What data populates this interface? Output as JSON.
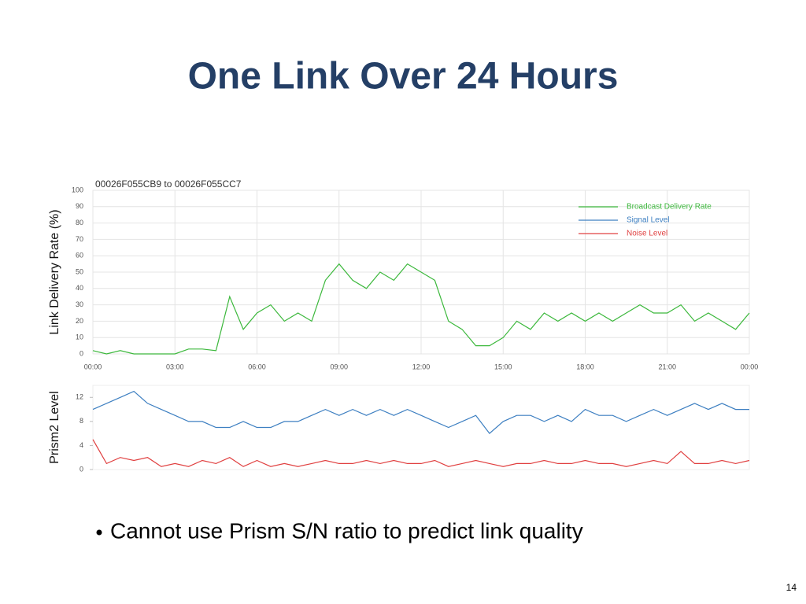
{
  "slide": {
    "title": "One Link Over 24 Hours",
    "bullet": "Cannot use Prism S/N ratio to predict link quality",
    "page_number": "14"
  },
  "chart_data": [
    {
      "type": "line",
      "title": "00026F055CB9 to 00026F055CC7",
      "y_label": "Link Delivery Rate (%)",
      "legend": "upper right",
      "grid": true,
      "x": [
        0,
        0.5,
        1,
        1.5,
        2,
        2.5,
        3,
        3.5,
        4,
        4.5,
        5,
        5.5,
        6,
        6.5,
        7,
        7.5,
        8,
        8.5,
        9,
        9.5,
        10,
        10.5,
        11,
        11.5,
        12,
        12.5,
        13,
        13.5,
        14,
        14.5,
        15,
        15.5,
        16,
        16.5,
        17,
        17.5,
        18,
        18.5,
        19,
        19.5,
        20,
        20.5,
        21,
        21.5,
        22,
        22.5,
        23,
        23.5,
        24
      ],
      "xlim": [
        0,
        24
      ],
      "xticks": [
        {
          "value": 0,
          "label": "00:00"
        },
        {
          "value": 3,
          "label": "03:00"
        },
        {
          "value": 6,
          "label": "06:00"
        },
        {
          "value": 9,
          "label": "09:00"
        },
        {
          "value": 12,
          "label": "12:00"
        },
        {
          "value": 15,
          "label": "15:00"
        },
        {
          "value": 18,
          "label": "18:00"
        },
        {
          "value": 21,
          "label": "21:00"
        },
        {
          "value": 24,
          "label": "00:00"
        }
      ],
      "ylim": [
        0,
        100
      ],
      "yticks": [
        0,
        10,
        20,
        30,
        40,
        50,
        60,
        70,
        80,
        90,
        100
      ],
      "series": [
        {
          "name": "Broadcast Delivery Rate",
          "color": "#3cb83c",
          "values": [
            2,
            0,
            2,
            0,
            0,
            0,
            0,
            3,
            3,
            2,
            35,
            15,
            25,
            30,
            20,
            25,
            20,
            45,
            55,
            45,
            40,
            50,
            45,
            55,
            50,
            45,
            20,
            15,
            5,
            5,
            10,
            20,
            15,
            25,
            20,
            25,
            20,
            25,
            20,
            25,
            30,
            25,
            25,
            30,
            20,
            25,
            20,
            15,
            25
          ]
        }
      ]
    },
    {
      "type": "line",
      "y_label": "Prism2 Level",
      "x": [
        0,
        0.5,
        1,
        1.5,
        2,
        2.5,
        3,
        3.5,
        4,
        4.5,
        5,
        5.5,
        6,
        6.5,
        7,
        7.5,
        8,
        8.5,
        9,
        9.5,
        10,
        10.5,
        11,
        11.5,
        12,
        12.5,
        13,
        13.5,
        14,
        14.5,
        15,
        15.5,
        16,
        16.5,
        17,
        17.5,
        18,
        18.5,
        19,
        19.5,
        20,
        20.5,
        21,
        21.5,
        22,
        22.5,
        23,
        23.5,
        24
      ],
      "xlim": [
        0,
        24
      ],
      "ylim": [
        0,
        14
      ],
      "yticks": [
        0,
        4,
        8,
        12
      ],
      "series": [
        {
          "name": "Signal Level",
          "color": "#3d7fc1",
          "values": [
            10,
            11,
            12,
            13,
            11,
            10,
            9,
            8,
            8,
            7,
            7,
            8,
            7,
            7,
            8,
            8,
            9,
            10,
            9,
            10,
            9,
            10,
            9,
            10,
            9,
            8,
            7,
            8,
            9,
            6,
            8,
            9,
            9,
            8,
            9,
            8,
            10,
            9,
            9,
            8,
            9,
            10,
            9,
            10,
            11,
            10,
            11,
            10,
            10
          ]
        },
        {
          "name": "Noise Level",
          "color": "#e04040",
          "values": [
            5,
            1,
            2,
            1.5,
            2,
            0.5,
            1,
            0.5,
            1.5,
            1,
            2,
            0.5,
            1.5,
            0.5,
            1,
            0.5,
            1,
            1.5,
            1,
            1,
            1.5,
            1,
            1.5,
            1,
            1,
            1.5,
            0.5,
            1,
            1.5,
            1,
            0.5,
            1,
            1,
            1.5,
            1,
            1,
            1.5,
            1,
            1,
            0.5,
            1,
            1.5,
            1,
            3,
            1,
            1,
            1.5,
            1,
            1.5
          ]
        }
      ]
    }
  ]
}
